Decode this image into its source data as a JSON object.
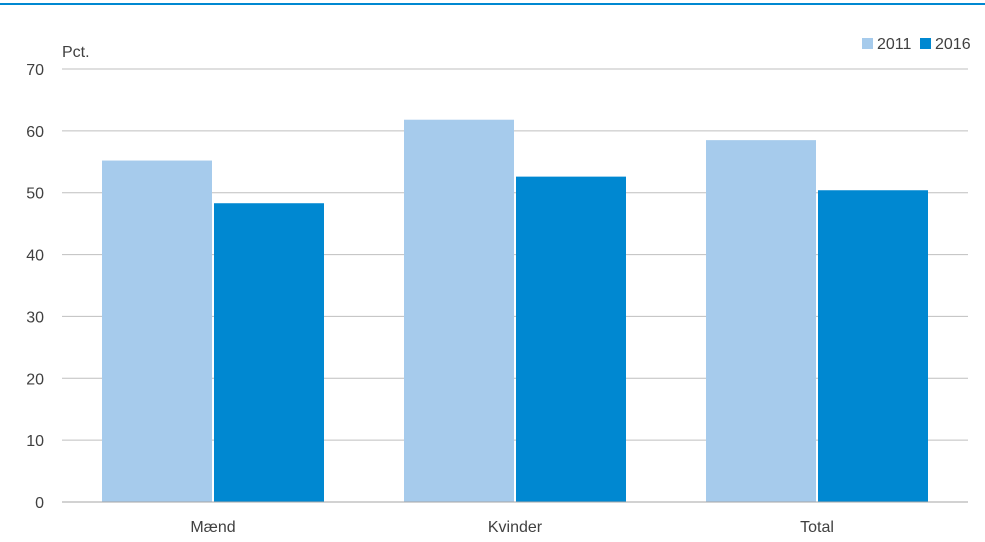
{
  "chart_data": {
    "type": "bar",
    "ylabel": "Pct.",
    "ylim": [
      0,
      70
    ],
    "yticks": [
      0,
      10,
      20,
      30,
      40,
      50,
      60,
      70
    ],
    "categories": [
      "Mænd",
      "Kvinder",
      "Total"
    ],
    "series": [
      {
        "name": "2011",
        "color": "#a6cbec",
        "values": [
          55.2,
          61.8,
          58.5
        ]
      },
      {
        "name": "2016",
        "color": "#0088d1",
        "values": [
          48.3,
          52.6,
          50.4
        ]
      }
    ],
    "grid": true,
    "legend": "top-right",
    "accent_line_color": "#0088d1"
  }
}
